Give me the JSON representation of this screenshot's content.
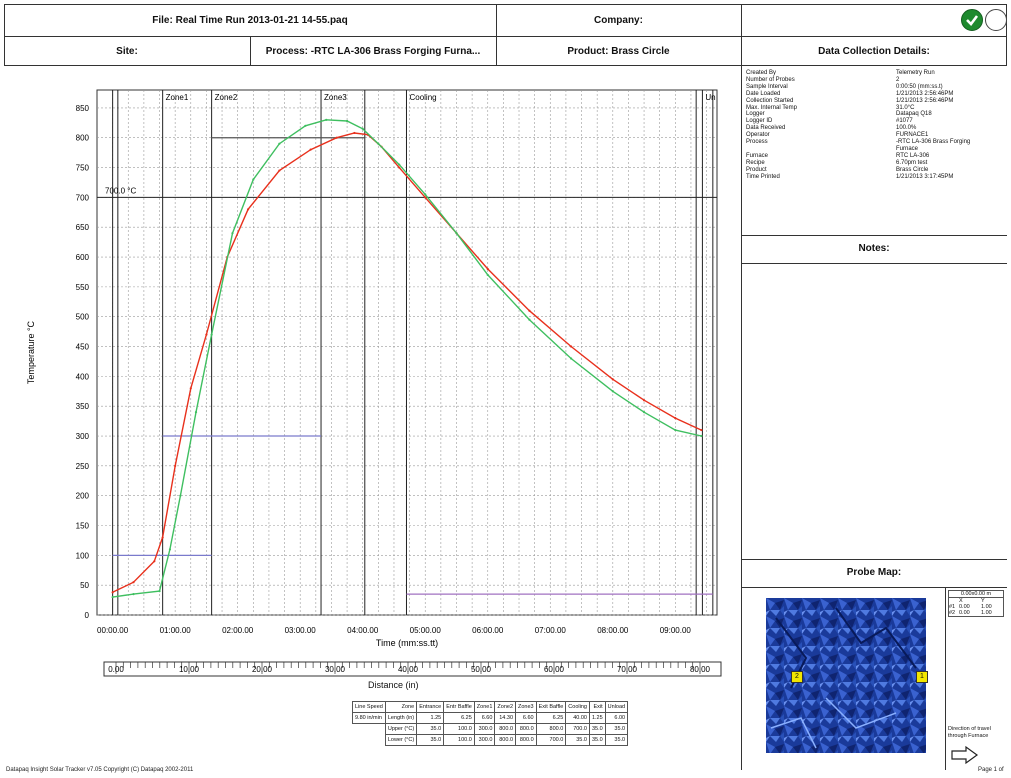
{
  "header": {
    "file_label": "File: Real Time Run 2013-01-21 14-55.paq",
    "company_label": "Company:",
    "site_label": "Site:",
    "process_label": "Process: -RTC LA-306 Brass Forging Furna...",
    "product_label": "Product: Brass Circle",
    "details_title": "Data Collection Details:"
  },
  "details": [
    {
      "k": "Created By",
      "v": "Telemetry Run"
    },
    {
      "k": "Number of Probes",
      "v": "2"
    },
    {
      "k": "Sample Interval",
      "v": "0:00:50 (mm:ss.t)"
    },
    {
      "k": "Date Loaded",
      "v": "1/21/2013 2:56:46PM"
    },
    {
      "k": "Collection Started",
      "v": "1/21/2013 2:56:46PM"
    },
    {
      "k": "Max. Internal Temp",
      "v": "31.0°C"
    },
    {
      "k": "Logger",
      "v": "Datapaq Q18"
    },
    {
      "k": "Logger ID",
      "v": "#1077"
    },
    {
      "k": "Data Received",
      "v": "100.0%"
    },
    {
      "k": "Operator",
      "v": "FURNACE1"
    },
    {
      "k": "Process",
      "v": "-RTC LA-306 Brass Forging"
    },
    {
      "k": "",
      "v": "Furnace"
    },
    {
      "k": "Furnace",
      "v": "RTC LA-306"
    },
    {
      "k": "Recipe",
      "v": "6.70pm test"
    },
    {
      "k": "Product",
      "v": "Brass Circle"
    },
    {
      "k": "Time Printed",
      "v": "1/21/2013 3:17:45PM"
    }
  ],
  "notes_title": "Notes:",
  "probe_map_title": "Probe Map:",
  "probe_labels": [
    "2",
    "1"
  ],
  "probe_side": {
    "dims": "0.00x0.00 m",
    "col_x": "X",
    "col_y": "Y",
    "rows": [
      {
        "id": "#1",
        "x": "0.00",
        "y": "1.00"
      },
      {
        "id": "#2",
        "x": "0.00",
        "y": "1.00"
      }
    ],
    "direction_text": "Direction of travel through Furnace"
  },
  "chart_data": {
    "type": "line",
    "xlabel": "Time (mm:ss.tt)",
    "ylabel": "Temperature °C",
    "x_ticks": [
      "00:00.00",
      "01:00.00",
      "02:00.00",
      "03:00.00",
      "04:00.00",
      "05:00.00",
      "06:00.00",
      "07:00.00",
      "08:00.00",
      "09:00.00"
    ],
    "x_tick_seconds": [
      0,
      60,
      120,
      180,
      240,
      300,
      360,
      420,
      480,
      540
    ],
    "xlim_seconds": [
      -15,
      580
    ],
    "ylim": [
      0,
      880
    ],
    "y_ticks": [
      0,
      50,
      100,
      150,
      200,
      250,
      300,
      350,
      400,
      450,
      500,
      550,
      600,
      650,
      700,
      750,
      800,
      850
    ],
    "reference_line": {
      "value": 700,
      "label": "700.0 °C"
    },
    "zones": [
      {
        "name": "Zone1",
        "start": 48,
        "end": 95
      },
      {
        "name": "Zone2",
        "start": 95,
        "end": 200
      },
      {
        "name": "Zone3",
        "start": 200,
        "end": 242
      },
      {
        "name": "Cooling",
        "start": 282,
        "end": 560
      },
      {
        "name": "Un",
        "start": 566,
        "end": 576
      }
    ],
    "extra_boundaries": [
      0,
      5,
      242,
      560,
      576
    ],
    "series": [
      {
        "color": "#e8301c",
        "points": [
          [
            0,
            38
          ],
          [
            20,
            55
          ],
          [
            40,
            90
          ],
          [
            48,
            130
          ],
          [
            60,
            250
          ],
          [
            75,
            380
          ],
          [
            90,
            470
          ],
          [
            110,
            600
          ],
          [
            130,
            680
          ],
          [
            160,
            745
          ],
          [
            190,
            780
          ],
          [
            215,
            800
          ],
          [
            232,
            808
          ],
          [
            245,
            805
          ],
          [
            258,
            785
          ],
          [
            275,
            750
          ],
          [
            300,
            700
          ],
          [
            330,
            640
          ],
          [
            360,
            580
          ],
          [
            400,
            510
          ],
          [
            440,
            450
          ],
          [
            480,
            395
          ],
          [
            510,
            360
          ],
          [
            540,
            330
          ],
          [
            565,
            310
          ]
        ]
      },
      {
        "color": "#3fbf60",
        "points": [
          [
            0,
            30
          ],
          [
            20,
            35
          ],
          [
            45,
            40
          ],
          [
            55,
            110
          ],
          [
            65,
            200
          ],
          [
            80,
            340
          ],
          [
            95,
            470
          ],
          [
            115,
            640
          ],
          [
            135,
            730
          ],
          [
            160,
            790
          ],
          [
            185,
            820
          ],
          [
            205,
            830
          ],
          [
            225,
            828
          ],
          [
            240,
            815
          ],
          [
            255,
            790
          ],
          [
            275,
            755
          ],
          [
            300,
            705
          ],
          [
            330,
            640
          ],
          [
            360,
            570
          ],
          [
            400,
            495
          ],
          [
            440,
            430
          ],
          [
            480,
            375
          ],
          [
            510,
            340
          ],
          [
            540,
            310
          ],
          [
            565,
            300
          ]
        ]
      }
    ],
    "setpoint_lines": [
      {
        "color": "#7a7acc",
        "from": 0,
        "to": 95,
        "value": 100
      },
      {
        "color": "#7a7acc",
        "from": 48,
        "to": 200,
        "value": 300
      },
      {
        "color": "#555555",
        "from": 95,
        "to": 242,
        "value": 800
      },
      {
        "color": "#a070c0",
        "from": 282,
        "to": 576,
        "value": 35
      }
    ]
  },
  "distance_axis": {
    "label": "Distance (in)",
    "ticks": [
      "0.00",
      "10.00",
      "20.00",
      "30.00",
      "40.00",
      "50.00",
      "60.00",
      "70.00",
      "80.00"
    ]
  },
  "settings_table": {
    "header": [
      "Line Speed",
      "Zone",
      "Entrance",
      "Entr Baffle",
      "Zone1",
      "Zone2",
      "Zone3",
      "Exit Baffle",
      "Cooling",
      "Exit",
      "Unload"
    ],
    "rows": [
      [
        "9.80 in/min",
        "Length (in)",
        "1.25",
        "6.25",
        "6.60",
        "14.30",
        "6.60",
        "6.25",
        "40.00",
        "1.25",
        "6.00"
      ],
      [
        "",
        "Upper (°C)",
        "35.0",
        "100.0",
        "300.0",
        "800.0",
        "800.0",
        "800.0",
        "700.0",
        "35.0",
        "35.0"
      ],
      [
        "",
        "Lower (°C)",
        "35.0",
        "100.0",
        "300.0",
        "800.0",
        "800.0",
        "700.0",
        "35.0",
        "35.0",
        "35.0"
      ]
    ]
  },
  "footer": {
    "left": "Datapaq Insight Solar Tracker v7.05 Copyright (C) Datapaq 2002-2011",
    "right": "Page 1 of"
  }
}
